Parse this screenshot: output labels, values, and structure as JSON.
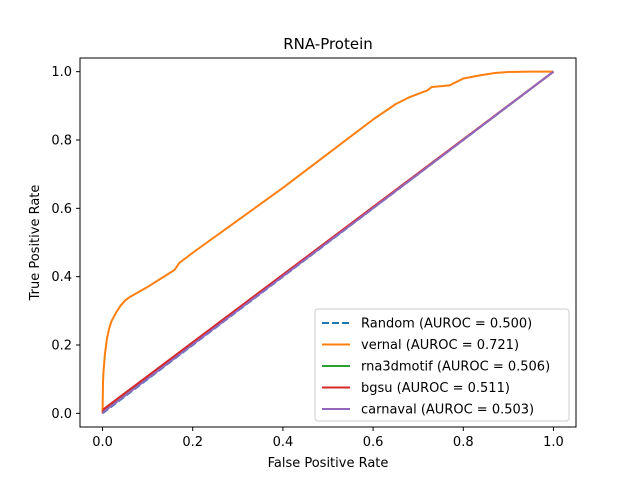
{
  "chart_data": {
    "type": "line",
    "title": "RNA-Protein",
    "xlabel": "False Positive Rate",
    "ylabel": "True Positive Rate",
    "xlim": [
      -0.05,
      1.05
    ],
    "ylim": [
      -0.04,
      1.04
    ],
    "xticks": [
      0.0,
      0.2,
      0.4,
      0.6,
      0.8,
      1.0
    ],
    "xtick_labels": [
      "0.0",
      "0.2",
      "0.4",
      "0.6",
      "0.8",
      "1.0"
    ],
    "yticks": [
      0.0,
      0.2,
      0.4,
      0.6,
      0.8,
      1.0
    ],
    "ytick_labels": [
      "0.0",
      "0.2",
      "0.4",
      "0.6",
      "0.8",
      "1.0"
    ],
    "grid": false,
    "legend_position": "lower-right",
    "series": [
      {
        "name": "Random (AUROC = 0.500)",
        "color": "#1f77b4",
        "dash": "dashed",
        "x": [
          0,
          1
        ],
        "y": [
          0,
          1
        ]
      },
      {
        "name": "vernal (AUROC = 0.721)",
        "color": "#ff7f0e",
        "dash": "solid",
        "x": [
          0,
          0.001,
          0.002,
          0.005,
          0.01,
          0.015,
          0.02,
          0.03,
          0.04,
          0.05,
          0.06,
          0.08,
          0.1,
          0.13,
          0.16,
          0.17,
          0.2,
          0.3,
          0.4,
          0.5,
          0.6,
          0.65,
          0.68,
          0.72,
          0.73,
          0.77,
          0.8,
          0.84,
          0.87,
          0.9,
          0.95,
          1.0
        ],
        "y": [
          0,
          0.09,
          0.12,
          0.17,
          0.22,
          0.25,
          0.27,
          0.295,
          0.315,
          0.33,
          0.34,
          0.355,
          0.37,
          0.395,
          0.42,
          0.44,
          0.47,
          0.565,
          0.66,
          0.76,
          0.86,
          0.905,
          0.925,
          0.945,
          0.955,
          0.96,
          0.98,
          0.99,
          0.996,
          0.999,
          1.0,
          1.0
        ]
      },
      {
        "name": "rna3dmotif (AUROC = 0.506)",
        "color": "#2ca02c",
        "dash": "solid",
        "x": [
          0,
          0.005,
          1
        ],
        "y": [
          0,
          0.008,
          1
        ]
      },
      {
        "name": "bgsu (AUROC = 0.511)",
        "color": "#d62728",
        "dash": "solid",
        "x": [
          0,
          0.003,
          1
        ],
        "y": [
          0,
          0.013,
          1
        ]
      },
      {
        "name": "carnaval (AUROC = 0.503)",
        "color": "#9467bd",
        "dash": "solid",
        "x": [
          0,
          0.002,
          1
        ],
        "y": [
          0,
          0.004,
          1
        ]
      }
    ]
  }
}
